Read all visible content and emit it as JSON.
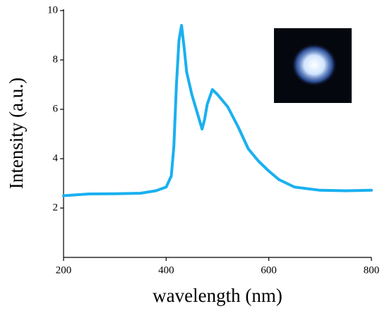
{
  "chart_data": {
    "type": "line",
    "x_label": "wavelength (nm)",
    "y_label": "Intensity (a.u.)",
    "xlim": [
      200,
      800
    ],
    "xticks": [
      200,
      400,
      600,
      800
    ],
    "ylim": [
      0,
      10
    ],
    "yticks": [
      2,
      4,
      6,
      8,
      10
    ],
    "series": [
      {
        "color": "#1ab0f0",
        "x": [
          200,
          250,
          300,
          350,
          380,
          400,
          410,
          415,
          420,
          425,
          430,
          435,
          440,
          450,
          460,
          470,
          475,
          480,
          490,
          500,
          520,
          540,
          560,
          580,
          600,
          620,
          650,
          700,
          750,
          800
        ],
        "values": [
          2.5,
          2.57,
          2.58,
          2.6,
          2.7,
          2.85,
          3.3,
          4.5,
          7.0,
          8.8,
          9.4,
          8.5,
          7.5,
          6.6,
          5.9,
          5.2,
          5.6,
          6.2,
          6.8,
          6.6,
          6.1,
          5.3,
          4.4,
          3.9,
          3.5,
          3.15,
          2.85,
          2.72,
          2.7,
          2.72
        ]
      }
    ]
  }
}
